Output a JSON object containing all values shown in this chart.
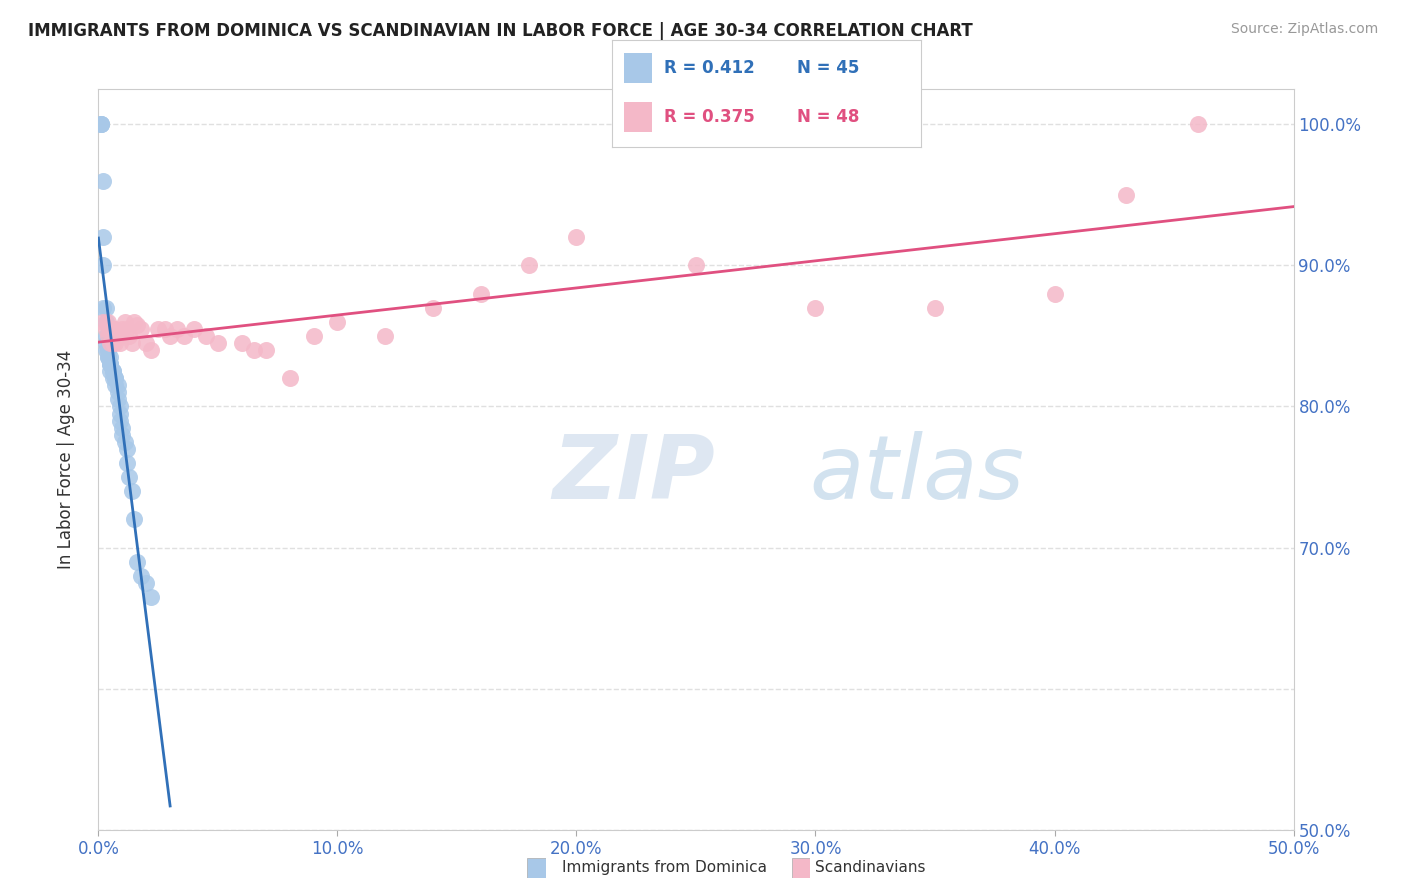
{
  "title": "IMMIGRANTS FROM DOMINICA VS SCANDINAVIAN IN LABOR FORCE | AGE 30-34 CORRELATION CHART",
  "source": "Source: ZipAtlas.com",
  "ylabel": "In Labor Force | Age 30-34",
  "legend_blue_label": "Immigrants from Dominica",
  "legend_pink_label": "Scandinavians",
  "R_blue": 0.412,
  "N_blue": 45,
  "R_pink": 0.375,
  "N_pink": 48,
  "blue_color": "#a8c8e8",
  "pink_color": "#f4b8c8",
  "blue_line_color": "#3070b8",
  "pink_line_color": "#e05080",
  "blue_dots_x": [
    0.001,
    0.001,
    0.001,
    0.002,
    0.002,
    0.002,
    0.002,
    0.003,
    0.003,
    0.003,
    0.003,
    0.003,
    0.004,
    0.004,
    0.004,
    0.004,
    0.005,
    0.005,
    0.005,
    0.005,
    0.005,
    0.006,
    0.006,
    0.006,
    0.007,
    0.007,
    0.007,
    0.008,
    0.008,
    0.008,
    0.009,
    0.009,
    0.009,
    0.01,
    0.01,
    0.011,
    0.012,
    0.012,
    0.013,
    0.014,
    0.015,
    0.016,
    0.018,
    0.02,
    0.022
  ],
  "blue_dots_y": [
    1.0,
    1.0,
    1.0,
    0.96,
    0.92,
    0.9,
    0.87,
    0.87,
    0.86,
    0.85,
    0.845,
    0.84,
    0.84,
    0.84,
    0.835,
    0.835,
    0.835,
    0.83,
    0.83,
    0.83,
    0.825,
    0.825,
    0.825,
    0.82,
    0.82,
    0.82,
    0.815,
    0.815,
    0.81,
    0.805,
    0.8,
    0.795,
    0.79,
    0.785,
    0.78,
    0.775,
    0.77,
    0.76,
    0.75,
    0.74,
    0.72,
    0.69,
    0.68,
    0.675,
    0.665
  ],
  "pink_dots_x": [
    0.002,
    0.003,
    0.004,
    0.004,
    0.005,
    0.005,
    0.006,
    0.006,
    0.007,
    0.007,
    0.008,
    0.009,
    0.009,
    0.01,
    0.011,
    0.012,
    0.013,
    0.014,
    0.015,
    0.016,
    0.018,
    0.02,
    0.022,
    0.025,
    0.028,
    0.03,
    0.033,
    0.036,
    0.04,
    0.045,
    0.05,
    0.06,
    0.065,
    0.07,
    0.08,
    0.09,
    0.1,
    0.12,
    0.14,
    0.16,
    0.18,
    0.2,
    0.25,
    0.3,
    0.35,
    0.4,
    0.43,
    0.46
  ],
  "pink_dots_y": [
    0.86,
    0.855,
    0.86,
    0.85,
    0.855,
    0.845,
    0.855,
    0.845,
    0.855,
    0.845,
    0.85,
    0.85,
    0.845,
    0.855,
    0.86,
    0.855,
    0.85,
    0.845,
    0.86,
    0.858,
    0.855,
    0.845,
    0.84,
    0.855,
    0.855,
    0.85,
    0.855,
    0.85,
    0.855,
    0.85,
    0.845,
    0.845,
    0.84,
    0.84,
    0.82,
    0.85,
    0.86,
    0.85,
    0.87,
    0.88,
    0.9,
    0.92,
    0.9,
    0.87,
    0.87,
    0.88,
    0.95,
    1.0
  ],
  "xmin": 0.0,
  "xmax": 0.5,
  "ymin": 0.5,
  "ymax": 1.025,
  "watermark_zip": "ZIP",
  "watermark_atlas": "atlas",
  "background_color": "#ffffff",
  "grid_color": "#e0e0e0",
  "grid_style": "--"
}
